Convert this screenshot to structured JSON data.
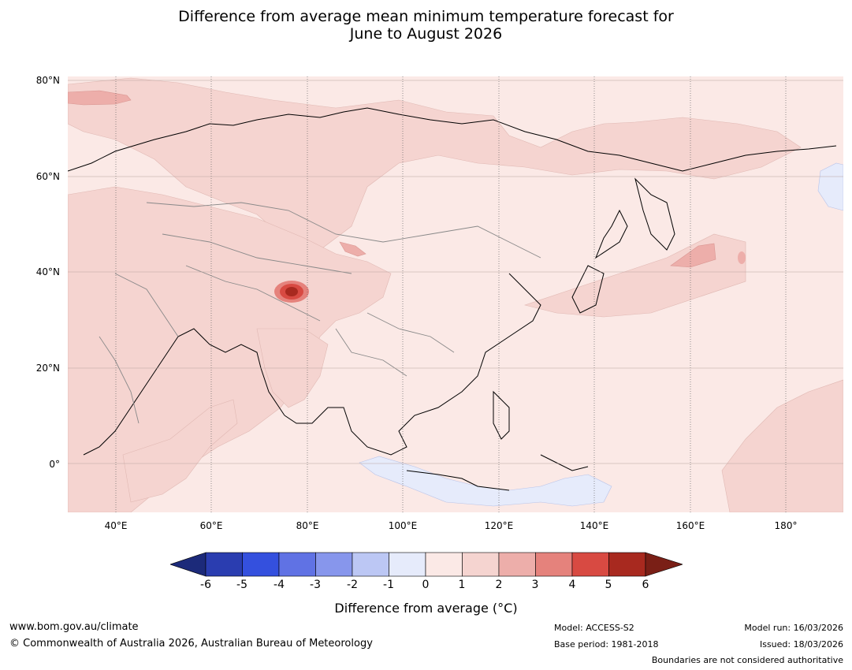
{
  "title": {
    "line1": "Difference from average mean minimum temperature forecast for",
    "line2": "June to August 2026"
  },
  "map": {
    "lat_labels": [
      "80°N",
      "60°N",
      "40°N",
      "20°N",
      "0°"
    ],
    "lon_labels": [
      "40°E",
      "60°E",
      "80°E",
      "100°E",
      "120°E",
      "140°E",
      "160°E",
      "180°"
    ],
    "lat_range": [
      -10,
      80
    ],
    "lon_range": [
      30,
      192
    ],
    "gridline_lons": [
      40,
      60,
      80,
      100,
      120,
      140,
      160,
      180
    ],
    "gridline_lats": [
      0,
      20,
      40,
      60,
      80
    ],
    "regions": [
      {
        "name": "mostly-near-average",
        "category": "0 to 1"
      },
      {
        "name": "siberia-warm",
        "category": "1 to 2"
      },
      {
        "name": "central-asia-warm",
        "category": "1 to 2"
      },
      {
        "name": "middle-east-africa-warm",
        "category": "1 to 2"
      },
      {
        "name": "pacific-warm",
        "category": "1 to 2"
      },
      {
        "name": "tibet-hotspot",
        "category": "4 to 6"
      },
      {
        "name": "indonesia-cool",
        "category": "-1 to 0"
      },
      {
        "name": "bering-cool",
        "category": "-1 to 0"
      }
    ]
  },
  "colorbar": {
    "ticks": [
      "-6",
      "-5",
      "-4",
      "-3",
      "-2",
      "-1",
      "0",
      "1",
      "2",
      "3",
      "4",
      "5",
      "6"
    ],
    "colors": [
      "#1c2a7a",
      "#2a3db0",
      "#3450de",
      "#6072e4",
      "#8796ec",
      "#bcc7f4",
      "#e6ebfb",
      "#fbe9e6",
      "#f5d4d0",
      "#edaeaa",
      "#e5827c",
      "#d84a42",
      "#a8291f",
      "#7a1f16"
    ],
    "label": "Difference from average ($^\\circ$C)",
    "label_display": "Difference from average (°C)"
  },
  "footer": {
    "website": "www.bom.gov.au/climate",
    "copyright": "© Commonwealth of Australia 2026, Australian Bureau of Meteorology",
    "model": "Model: ACCESS-S2",
    "base_period": "Base period: 1981-2018",
    "model_run": "Model run: 16/03/2026",
    "issued": "Issued: 18/03/2026",
    "boundaries": "Boundaries are not considered authoritative"
  }
}
